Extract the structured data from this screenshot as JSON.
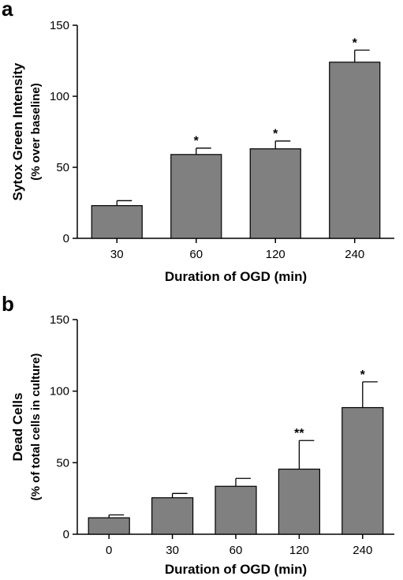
{
  "colors": {
    "bar": "#808080",
    "bar_stroke": "#000000",
    "axis": "#000000"
  },
  "chart_data": [
    {
      "type": "bar",
      "panel_label": "a",
      "categories": [
        "30",
        "60",
        "120",
        "240"
      ],
      "values": [
        23,
        59,
        63,
        124
      ],
      "errors": [
        3.5,
        4.5,
        5.5,
        8.5
      ],
      "annotations": [
        "",
        "*",
        "*",
        "*"
      ],
      "xlabel": "Duration of OGD (min)",
      "ylabel": [
        "Sytox Green Intensity",
        "(% over baseline)"
      ],
      "ylim": [
        0,
        150
      ],
      "yticks": [
        0,
        50,
        100,
        150
      ],
      "grid": false
    },
    {
      "type": "bar",
      "panel_label": "b",
      "categories": [
        "0",
        "30",
        "60",
        "120",
        "240"
      ],
      "values": [
        11.5,
        25.5,
        33.5,
        45.5,
        88.5
      ],
      "errors": [
        2,
        3,
        5.5,
        20,
        18
      ],
      "annotations": [
        "",
        "",
        "",
        "**",
        "*"
      ],
      "xlabel": "Duration of OGD (min)",
      "ylabel": [
        "Dead Cells",
        "(% of total cells in culture)"
      ],
      "ylim": [
        0,
        150
      ],
      "yticks": [
        0,
        50,
        100,
        150
      ],
      "grid": false
    }
  ]
}
